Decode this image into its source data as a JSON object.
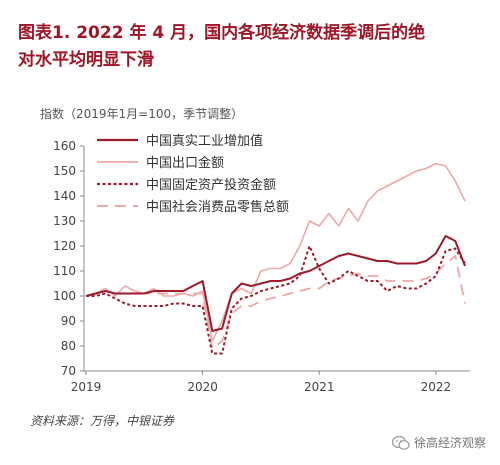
{
  "title_line1": "图表1. 2022 年 4 月，国内各项经济数据季调后的绝",
  "title_line2": "对水平均明显下滑",
  "source": "资料来源：万得，中银证券",
  "watermark": "徐高经济观察",
  "chart_data": {
    "type": "line",
    "ylabel": "指数（2019年1月=100，季节调整）",
    "ylim": [
      70,
      160
    ],
    "yticks": [
      70,
      80,
      90,
      100,
      110,
      120,
      130,
      140,
      150,
      160
    ],
    "xticks": [
      "2019",
      "2020",
      "2021",
      "2022"
    ],
    "x": [
      "2019-01",
      "2019-02",
      "2019-03",
      "2019-04",
      "2019-05",
      "2019-06",
      "2019-07",
      "2019-08",
      "2019-09",
      "2019-10",
      "2019-11",
      "2019-12",
      "2020-01",
      "2020-02",
      "2020-03",
      "2020-04",
      "2020-05",
      "2020-06",
      "2020-07",
      "2020-08",
      "2020-09",
      "2020-10",
      "2020-11",
      "2020-12",
      "2021-01",
      "2021-02",
      "2021-03",
      "2021-04",
      "2021-05",
      "2021-06",
      "2021-07",
      "2021-08",
      "2021-09",
      "2021-10",
      "2021-11",
      "2021-12",
      "2022-01",
      "2022-02",
      "2022-03",
      "2022-04"
    ],
    "grid": false,
    "legend_position": "top-left",
    "series": [
      {
        "name": "中国真实工业增加值",
        "color": "#9e1b2c",
        "style": "solid",
        "width": 2,
        "values": [
          100,
          101,
          102,
          101,
          101,
          101,
          101,
          102,
          102,
          102,
          102,
          104,
          106,
          86,
          87,
          101,
          105,
          104,
          105,
          106,
          106,
          107,
          109,
          110,
          112,
          114,
          116,
          117,
          116,
          115,
          114,
          114,
          113,
          113,
          113,
          114,
          117,
          124,
          122,
          112
        ]
      },
      {
        "name": "中国出口金额",
        "color": "#f0a7a7",
        "style": "solid",
        "width": 1.6,
        "values": [
          100,
          101,
          103,
          100,
          104,
          102,
          101,
          103,
          100,
          100,
          101,
          100,
          102,
          82,
          90,
          101,
          103,
          101,
          110,
          111,
          111,
          113,
          120,
          130,
          128,
          133,
          128,
          135,
          130,
          138,
          142,
          144,
          146,
          148,
          150,
          151,
          153,
          152,
          146,
          138
        ]
      },
      {
        "name": "中国固定资产投资金额",
        "color": "#9e1b2c",
        "style": "dotted",
        "width": 2,
        "values": [
          100,
          100,
          101,
          99,
          97,
          96,
          96,
          96,
          96,
          97,
          97,
          96,
          96,
          77,
          77,
          95,
          99,
          100,
          102,
          103,
          104,
          105,
          108,
          120,
          111,
          105,
          107,
          110,
          108,
          106,
          106,
          102,
          104,
          103,
          103,
          105,
          108,
          118,
          119,
          113
        ]
      },
      {
        "name": "中国社会消费品零售总额",
        "color": "#f0a7a7",
        "style": "dashed",
        "width": 1.8,
        "values": [
          100,
          101,
          102,
          101,
          101,
          101,
          101,
          101,
          101,
          101,
          101,
          101,
          101,
          79,
          82,
          93,
          96,
          96,
          98,
          99,
          100,
          101,
          102,
          103,
          103,
          106,
          107,
          108,
          109,
          108,
          108,
          106,
          106,
          106,
          106,
          107,
          109,
          113,
          116,
          97
        ]
      }
    ]
  }
}
